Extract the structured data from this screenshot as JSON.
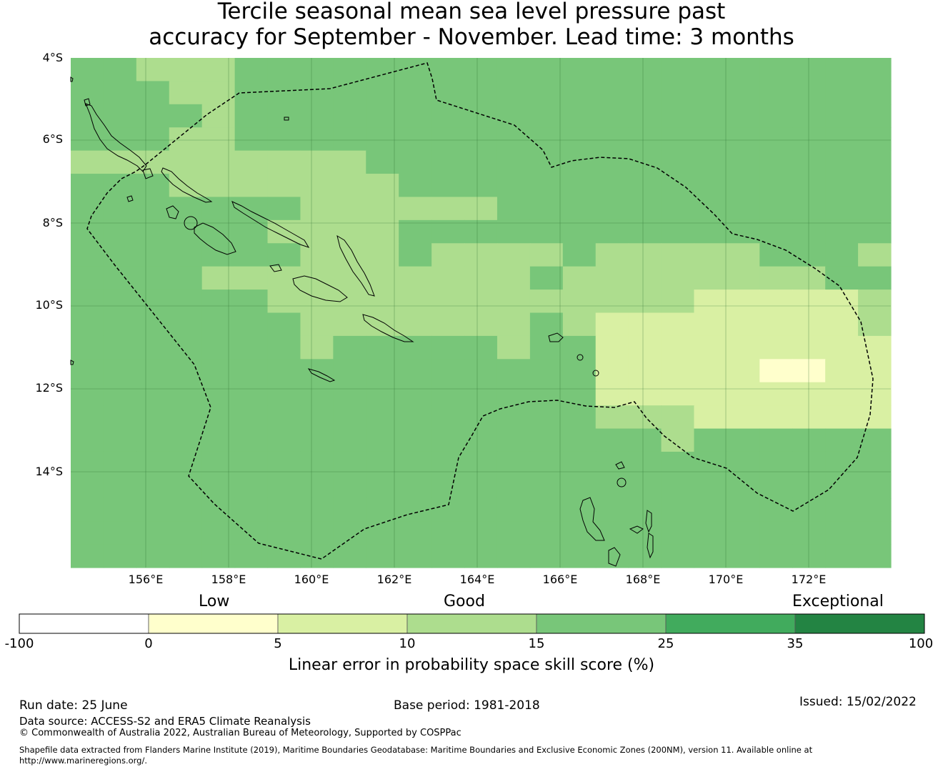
{
  "title": {
    "line1": "Tercile seasonal mean sea level pressure past",
    "line2": "accuracy for September - November. Lead time: 3 months"
  },
  "map": {
    "lat_labels": [
      "4°S",
      "6°S",
      "8°S",
      "10°S",
      "12°S",
      "14°S"
    ],
    "lon_labels": [
      "156°E",
      "158°E",
      "160°E",
      "162°E",
      "164°E",
      "166°E",
      "168°E",
      "170°E",
      "172°E"
    ],
    "lon_range": [
      154.2,
      174.0
    ],
    "lat_range": [
      -4.0,
      -16.3
    ],
    "grid_cell_deg": 0.83,
    "skill_grid_rows": [
      "2233322222222222222222222",
      "2223322222222222222222222",
      "2222322222222222222222222",
      "2223322222222222222222222",
      "3333333332222222222222222",
      "2223333333222222222222222",
      "2222222333333222222222222",
      "2222223333222222222222222",
      "2222222333233332333332223",
      "2222333333333323333333322",
      "2222223333333333333444443",
      "2222222333333323444444443",
      "2222222322222322444444444",
      "2222222222222222444445544",
      "2222222222222222444444444",
      "2222222222222222333444444",
      "2222222222222222223222222",
      "2222222222222222222222222",
      "2222222222222222222222222",
      "2222222222222222222222222",
      "2222222222222222222222222",
      "2222222222222222222222222"
    ],
    "colors": {
      "ocean_base": "#78c679",
      "cell_1": "#ffffcc",
      "cell_2": "#78c679",
      "cell_3": "#addd8e",
      "cell_4": "#d9f0a3",
      "cell_5": "#ffffcc",
      "boundary": "#000000"
    }
  },
  "colorbar": {
    "categories": [
      "Low",
      "Good",
      "Exceptional"
    ],
    "ticks": [
      "-100",
      "0",
      "5",
      "10",
      "15",
      "25",
      "35",
      "100"
    ],
    "colors": [
      "#ffffff",
      "#ffffcc",
      "#d9f0a3",
      "#addd8e",
      "#78c679",
      "#41ab5d",
      "#238443"
    ],
    "label": "Linear error in probability space skill score (%)"
  },
  "footer": {
    "run_date": "Run date: 25 June",
    "base_period": "Base period: 1981-2018",
    "issued": "Issued: 15/02/2022",
    "data_source": "Data source: ACCESS-S2 and ERA5 Climate Reanalysis",
    "copyright": "© Commonwealth of Australia 2022, Australian Bureau of Meteorology, Supported by COSPPac",
    "shapefile_line1": "Shapefile data extracted from Flanders Marine Institute (2019), Maritime Boundaries Geodatabase: Maritime Boundaries and Exclusive Economic Zones (200NM), version 11. Available online at",
    "shapefile_line2": "http://www.marineregions.org/."
  }
}
